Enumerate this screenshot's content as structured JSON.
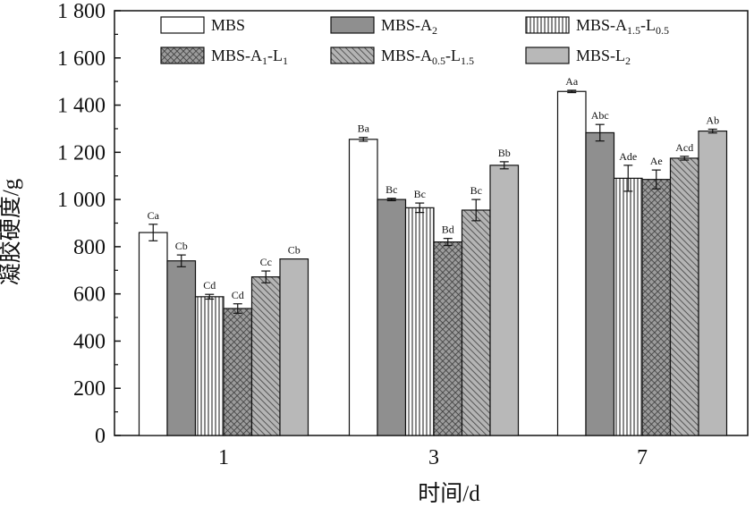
{
  "chart_data": {
    "type": "bar",
    "xlabel": "时间/d",
    "ylabel": "凝胶硬度/g",
    "ylim": [
      0,
      1800
    ],
    "yticks": [
      0,
      200,
      400,
      600,
      800,
      1000,
      1200,
      1400,
      1600,
      1800
    ],
    "ytick_labels": [
      "0",
      "200",
      "400",
      "600",
      "800",
      "1 000",
      "1 200",
      "1 400",
      "1 600",
      "1 800"
    ],
    "categories": [
      "1",
      "3",
      "7"
    ],
    "legend_position": "top",
    "series": [
      {
        "name": "MBS",
        "name_parts": [
          [
            "MBS",
            ""
          ]
        ],
        "pattern": "white",
        "values": [
          860,
          1255,
          1458
        ],
        "errors": [
          35,
          8,
          5
        ],
        "sig": [
          "Ca",
          "Ba",
          "Aa"
        ]
      },
      {
        "name": "MBS-A2",
        "name_parts": [
          [
            "MBS-A",
            ""
          ],
          [
            "2",
            "sub"
          ]
        ],
        "pattern": "gray",
        "values": [
          740,
          1000,
          1283
        ],
        "errors": [
          25,
          5,
          35
        ],
        "sig": [
          "Cb",
          "Bc",
          "Abc"
        ]
      },
      {
        "name": "MBS-A1.5-L0.5",
        "name_parts": [
          [
            "MBS-A",
            ""
          ],
          [
            "1.5",
            "sub"
          ],
          [
            "-L",
            ""
          ],
          [
            "0.5",
            "sub"
          ]
        ],
        "pattern": "vlines",
        "values": [
          588,
          965,
          1090
        ],
        "errors": [
          10,
          20,
          55
        ],
        "sig": [
          "Cd",
          "Bc",
          "Ade"
        ]
      },
      {
        "name": "MBS-A1-L1",
        "name_parts": [
          [
            "MBS-A",
            ""
          ],
          [
            "1",
            "sub"
          ],
          [
            "-L",
            ""
          ],
          [
            "1",
            "sub"
          ]
        ],
        "pattern": "crosshatch",
        "values": [
          538,
          820,
          1085
        ],
        "errors": [
          20,
          15,
          40
        ],
        "sig": [
          "Cd",
          "Bd",
          "Ae"
        ]
      },
      {
        "name": "MBS-A0.5-L1.5",
        "name_parts": [
          [
            "MBS-A",
            ""
          ],
          [
            "0.5",
            "sub"
          ],
          [
            "-L",
            ""
          ],
          [
            "1.5",
            "sub"
          ]
        ],
        "pattern": "diag",
        "values": [
          672,
          955,
          1175
        ],
        "errors": [
          25,
          45,
          8
        ],
        "sig": [
          "Cc",
          "Bc",
          "Acd"
        ]
      },
      {
        "name": "MBS-L2",
        "name_parts": [
          [
            "MBS-L",
            ""
          ],
          [
            "2",
            "sub"
          ]
        ],
        "pattern": "lightgray",
        "values": [
          748,
          1145,
          1290
        ],
        "errors": [
          0,
          15,
          8
        ],
        "sig": [
          "Cb",
          "Bb",
          "Ab"
        ]
      }
    ]
  }
}
